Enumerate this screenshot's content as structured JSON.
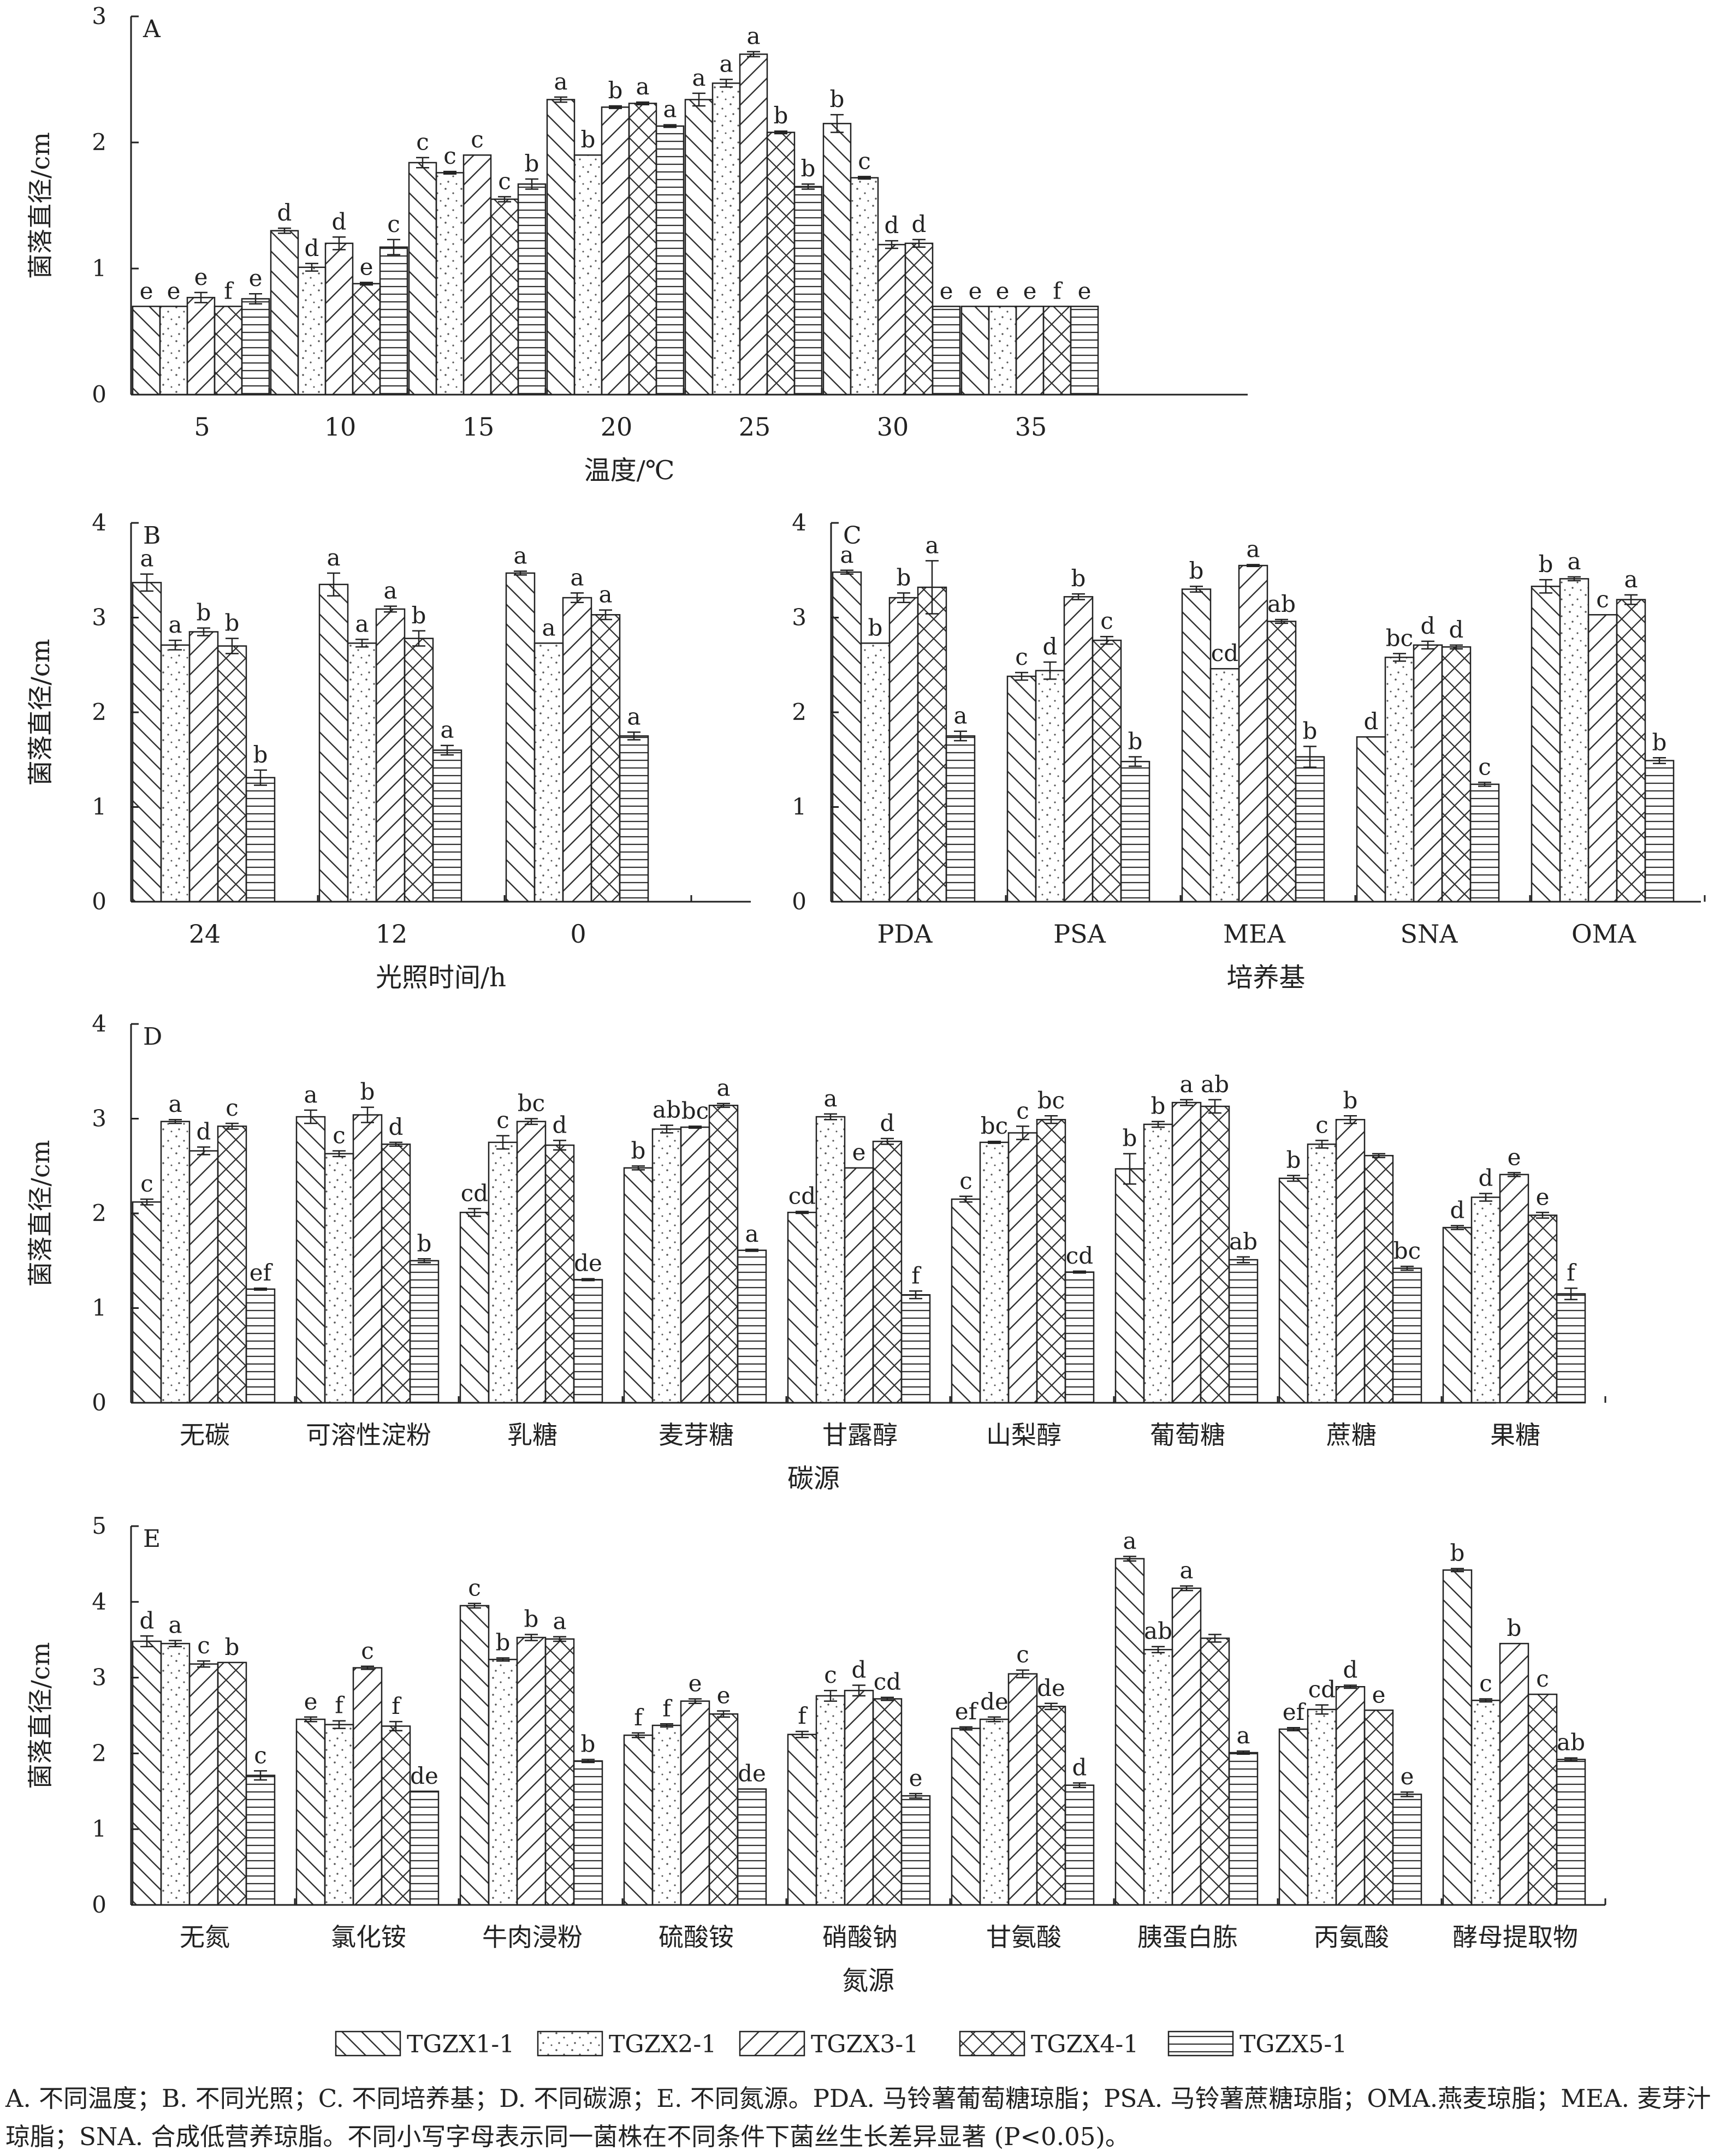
{
  "legend": [
    {
      "name": "TGZX1-1",
      "pattern": "back"
    },
    {
      "name": "TGZX2-1",
      "pattern": "dots"
    },
    {
      "name": "TGZX3-1",
      "pattern": "fwd"
    },
    {
      "name": "TGZX4-1",
      "pattern": "cross"
    },
    {
      "name": "TGZX5-1",
      "pattern": "horiz"
    }
  ],
  "caption": {
    "line1": "A. 不同温度；B. 不同光照；C. 不同培养基；D. 不同碳源；E. 不同氮源。PDA. 马铃薯葡萄糖琼脂；PSA. 马铃薯蔗糖琼脂；OMA.",
    "line2": "燕麦琼脂；MEA. 麦芽汁琼脂；SNA. 合成低营养琼脂。不同小写字母表示同一菌株在不同条件下菌丝生长差异显著 (P<0.05)。"
  },
  "chart_data": [
    {
      "id": "A",
      "panel_label": "A",
      "type": "bar",
      "xlabel": "温度/℃",
      "ylabel": "菌落直径/cm",
      "ylim": [
        0,
        3
      ],
      "yticks": [
        0,
        1,
        2,
        3
      ],
      "categories": [
        "5",
        "10",
        "15",
        "20",
        "25",
        "30",
        "35"
      ],
      "values": [
        [
          0.7,
          0.7,
          0.77,
          0.7,
          0.76
        ],
        [
          1.3,
          1.01,
          1.2,
          0.88,
          1.17
        ],
        [
          1.84,
          1.76,
          1.9,
          1.55,
          1.67
        ],
        [
          2.34,
          1.9,
          2.28,
          2.31,
          2.13
        ],
        [
          2.34,
          2.47,
          2.7,
          2.08,
          1.65
        ],
        [
          2.15,
          1.72,
          1.19,
          1.2,
          0.7
        ],
        [
          0.7,
          0.7,
          0.7,
          0.7,
          0.7
        ]
      ],
      "errors": [
        [
          0,
          0,
          0.04,
          0,
          0.04
        ],
        [
          0.02,
          0.03,
          0.05,
          0.01,
          0.06
        ],
        [
          0.04,
          0.01,
          0,
          0.02,
          0.04
        ],
        [
          0.02,
          0,
          0.01,
          0.01,
          0.01
        ],
        [
          0.05,
          0.03,
          0.02,
          0.01,
          0.02
        ],
        [
          0.07,
          0.01,
          0.03,
          0.03,
          0
        ],
        [
          0,
          0,
          0,
          0,
          0
        ]
      ],
      "letters": [
        [
          "e",
          "e",
          "e",
          "f",
          "e"
        ],
        [
          "d",
          "d",
          "d",
          "e",
          "c"
        ],
        [
          "c",
          "c",
          "c",
          "c",
          "b"
        ],
        [
          "a",
          "b",
          "b",
          "a",
          "a"
        ],
        [
          "a",
          "a",
          "a",
          "b",
          "b"
        ],
        [
          "b",
          "c",
          "d",
          "d",
          "e"
        ],
        [
          "e",
          "e",
          "e",
          "f",
          "e"
        ]
      ]
    },
    {
      "id": "B",
      "panel_label": "B",
      "type": "bar",
      "xlabel": "光照时间/h",
      "ylabel": "菌落直径/cm",
      "ylim": [
        0,
        4
      ],
      "yticks": [
        0,
        1,
        2,
        3,
        4
      ],
      "categories": [
        "24",
        "12",
        "0"
      ],
      "values": [
        [
          3.37,
          2.71,
          2.85,
          2.7,
          1.31
        ],
        [
          3.35,
          2.73,
          3.09,
          2.78,
          1.6
        ],
        [
          3.47,
          2.73,
          3.21,
          3.03,
          1.75
        ]
      ],
      "errors": [
        [
          0.09,
          0.05,
          0.04,
          0.08,
          0.08
        ],
        [
          0.12,
          0.04,
          0.03,
          0.08,
          0.05
        ],
        [
          0.02,
          0,
          0.05,
          0.05,
          0.04
        ]
      ],
      "letters": [
        [
          "a",
          "a",
          "b",
          "b",
          "b"
        ],
        [
          "a",
          "a",
          "a",
          "b",
          "a"
        ],
        [
          "a",
          "a",
          "a",
          "a",
          "a"
        ]
      ]
    },
    {
      "id": "C",
      "panel_label": "C",
      "type": "bar",
      "xlabel": "培养基",
      "ylabel": "菌落直径/cm",
      "ylim": [
        0,
        4
      ],
      "yticks": [
        0,
        1,
        2,
        3,
        4
      ],
      "categories": [
        "PDA",
        "PSA",
        "MEA",
        "SNA",
        "OMA"
      ],
      "values": [
        [
          3.48,
          2.73,
          3.21,
          3.32,
          1.75
        ],
        [
          2.38,
          2.44,
          3.22,
          2.76,
          1.48
        ],
        [
          3.3,
          2.46,
          3.55,
          2.96,
          1.53
        ],
        [
          1.74,
          2.58,
          2.71,
          2.69,
          1.24
        ],
        [
          3.33,
          3.41,
          3.03,
          3.19,
          1.49
        ]
      ],
      "errors": [
        [
          0.02,
          0,
          0.05,
          0.28,
          0.05
        ],
        [
          0.04,
          0.09,
          0.03,
          0.04,
          0.05
        ],
        [
          0.03,
          0,
          0.01,
          0.02,
          0.11
        ],
        [
          0,
          0.04,
          0.04,
          0.02,
          0.02
        ],
        [
          0.07,
          0.02,
          0,
          0.05,
          0.03
        ]
      ],
      "letters": [
        [
          "a",
          "b",
          "b",
          "a",
          "a"
        ],
        [
          "c",
          "d",
          "b",
          "c",
          "b"
        ],
        [
          "b",
          "cd",
          "a",
          "ab",
          "b"
        ],
        [
          "d",
          "bc",
          "d",
          "d",
          "c"
        ],
        [
          "b",
          "a",
          "c",
          "a",
          "b"
        ]
      ]
    },
    {
      "id": "D",
      "panel_label": "D",
      "type": "bar",
      "xlabel": "碳源",
      "ylabel": "菌落直径/cm",
      "ylim": [
        0,
        4
      ],
      "yticks": [
        0,
        1,
        2,
        3,
        4
      ],
      "categories": [
        "无碳",
        "可溶性淀粉",
        "乳糖",
        "麦芽糖",
        "甘露醇",
        "山梨醇",
        "葡萄糖",
        "蔗糖",
        "果糖"
      ],
      "values": [
        [
          2.12,
          2.97,
          2.66,
          2.92,
          1.2
        ],
        [
          3.02,
          2.63,
          3.04,
          2.73,
          1.5
        ],
        [
          2.01,
          2.75,
          2.97,
          2.72,
          1.3
        ],
        [
          2.48,
          2.89,
          2.91,
          3.14,
          1.61
        ],
        [
          2.01,
          3.02,
          2.48,
          2.76,
          1.14
        ],
        [
          2.15,
          2.75,
          2.85,
          2.99,
          1.38
        ],
        [
          2.47,
          2.94,
          3.17,
          3.13,
          1.51
        ],
        [
          2.37,
          2.73,
          2.99,
          2.61,
          1.42
        ],
        [
          1.85,
          2.17,
          2.41,
          1.98,
          1.15
        ]
      ],
      "errors": [
        [
          0.03,
          0.02,
          0.04,
          0.03,
          0.01
        ],
        [
          0.07,
          0.03,
          0.08,
          0.02,
          0.02
        ],
        [
          0.04,
          0.07,
          0.03,
          0.05,
          0.01
        ],
        [
          0.02,
          0.04,
          0.01,
          0.02,
          0.01
        ],
        [
          0.01,
          0.03,
          0,
          0.03,
          0.04
        ],
        [
          0.03,
          0.01,
          0.07,
          0.04,
          0.01
        ],
        [
          0.16,
          0.03,
          0.03,
          0.07,
          0.03
        ],
        [
          0.03,
          0.04,
          0.04,
          0.02,
          0.02
        ],
        [
          0.02,
          0.04,
          0.02,
          0.03,
          0.06
        ]
      ],
      "letters": [
        [
          "c",
          "a",
          "d",
          "c",
          "ef"
        ],
        [
          "a",
          "c",
          "b",
          "d",
          "b"
        ],
        [
          "cd",
          "c",
          "bc",
          "d",
          "de"
        ],
        [
          "b",
          "ab",
          "bc",
          "a",
          "a"
        ],
        [
          "cd",
          "a",
          "e",
          "d",
          "f"
        ],
        [
          "c",
          "bc",
          "c",
          "bc",
          "cd"
        ],
        [
          "b",
          "b",
          "a",
          "ab",
          "ab"
        ],
        [
          "b",
          "c",
          "b",
          "",
          "bc"
        ],
        [
          "d",
          "d",
          "e",
          "e",
          "f"
        ]
      ]
    },
    {
      "id": "E",
      "panel_label": "E",
      "type": "bar",
      "xlabel": "氮源",
      "ylabel": "菌落直径/cm",
      "ylim": [
        0,
        5
      ],
      "yticks": [
        0,
        1,
        2,
        3,
        4,
        5
      ],
      "categories": [
        "无氮",
        "氯化铵",
        "牛肉浸粉",
        "硫酸铵",
        "硝酸钠",
        "甘氨酸",
        "胰蛋白胨",
        "丙氨酸",
        "酵母提取物"
      ],
      "values": [
        [
          3.48,
          3.45,
          3.18,
          3.2,
          1.71
        ],
        [
          2.45,
          2.38,
          3.13,
          2.36,
          1.5
        ],
        [
          3.95,
          3.24,
          3.53,
          3.51,
          1.9
        ],
        [
          2.24,
          2.37,
          2.69,
          2.52,
          1.53
        ],
        [
          2.25,
          2.76,
          2.83,
          2.72,
          1.44
        ],
        [
          2.33,
          2.45,
          3.05,
          2.62,
          1.58
        ],
        [
          4.57,
          3.37,
          4.18,
          3.52,
          2.01
        ],
        [
          2.32,
          2.58,
          2.88,
          2.57,
          1.46
        ],
        [
          4.42,
          2.7,
          3.45,
          2.78,
          1.92
        ]
      ],
      "errors": [
        [
          0.07,
          0.04,
          0.04,
          0,
          0.06
        ],
        [
          0.03,
          0.05,
          0.02,
          0.06,
          0
        ],
        [
          0.03,
          0.02,
          0.04,
          0.03,
          0.02
        ],
        [
          0.03,
          0.02,
          0.03,
          0.04,
          0
        ],
        [
          0.04,
          0.07,
          0.07,
          0.02,
          0.03
        ],
        [
          0.02,
          0.03,
          0.05,
          0.04,
          0.03
        ],
        [
          0.03,
          0.04,
          0.03,
          0.05,
          0.02
        ],
        [
          0.02,
          0.06,
          0.02,
          0,
          0.03
        ],
        [
          0.02,
          0.02,
          0,
          0,
          0.02
        ]
      ],
      "letters": [
        [
          "d",
          "a",
          "c",
          "b",
          "c"
        ],
        [
          "e",
          "f",
          "c",
          "f",
          "de"
        ],
        [
          "c",
          "b",
          "b",
          "a",
          "b"
        ],
        [
          "f",
          "f",
          "e",
          "e",
          "de"
        ],
        [
          "f",
          "c",
          "d",
          "cd",
          "e"
        ],
        [
          "ef",
          "de",
          "c",
          "de",
          "d"
        ],
        [
          "a",
          "ab",
          "a",
          "",
          "a"
        ],
        [
          "ef",
          "cd",
          "d",
          "e",
          "e"
        ],
        [
          "b",
          "c",
          "b",
          "c",
          "ab"
        ]
      ]
    }
  ]
}
